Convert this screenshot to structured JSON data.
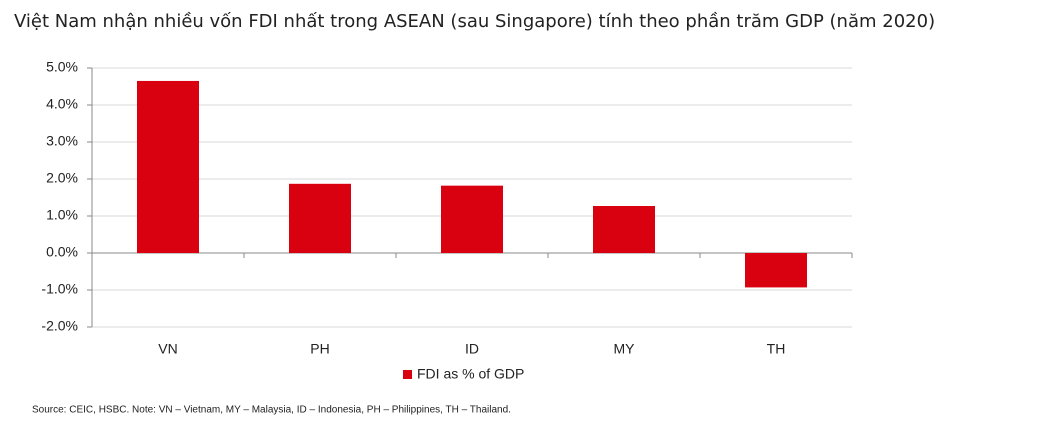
{
  "chart_data": {
    "type": "bar",
    "title": "Việt Nam nhận nhiều vốn FDI nhất trong ASEAN (sau Singapore) tính theo phần trăm GDP (năm 2020)",
    "categories": [
      "VN",
      "PH",
      "ID",
      "MY",
      "TH"
    ],
    "series": [
      {
        "name": "FDI as %  of GDP",
        "color": "#d9000f",
        "values": [
          4.65,
          1.87,
          1.82,
          1.27,
          -0.93
        ]
      }
    ],
    "ylim": [
      -2,
      5
    ],
    "yticks": [
      {
        "value": -2,
        "label": "-2.0%"
      },
      {
        "value": -1,
        "label": "-1.0%"
      },
      {
        "value": 0,
        "label": "0.0%"
      },
      {
        "value": 1,
        "label": "1.0%"
      },
      {
        "value": 2,
        "label": "2.0%"
      },
      {
        "value": 3,
        "label": "3.0%"
      },
      {
        "value": 4,
        "label": "4.0%"
      },
      {
        "value": 5,
        "label": "5.0%"
      }
    ],
    "grid": true,
    "legend": "bottom",
    "source": "Source: CEIC, HSBC. Note: VN – Vietnam, MY – Malaysia, ID – Indonesia, PH – Philippines, TH – Thailand."
  }
}
